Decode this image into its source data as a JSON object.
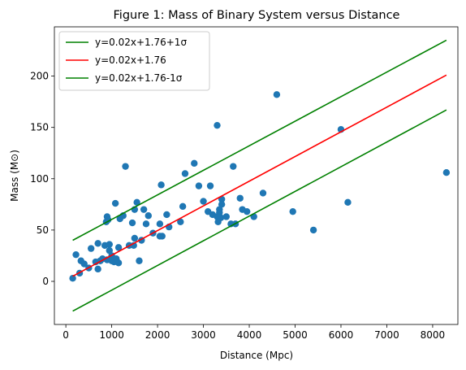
{
  "chart_data": {
    "type": "scatter",
    "title": "Figure 1: Mass of Binary System versus Distance",
    "xlabel": "Distance (Mpc)",
    "ylabel": "Mass (M⊙)",
    "xlim": [
      -250,
      8550
    ],
    "ylim": [
      -42,
      248
    ],
    "x_ticks": [
      0,
      1000,
      2000,
      3000,
      4000,
      5000,
      6000,
      7000,
      8000
    ],
    "y_ticks": [
      0,
      50,
      100,
      150,
      200
    ],
    "grid": false,
    "legend_position": "top-left",
    "points": {
      "color": "#1f77b4",
      "x": [
        150,
        220,
        300,
        330,
        400,
        500,
        550,
        650,
        700,
        700,
        750,
        800,
        850,
        880,
        900,
        900,
        920,
        950,
        950,
        1000,
        1000,
        1050,
        1080,
        1100,
        1120,
        1150,
        1150,
        1180,
        1250,
        1300,
        1380,
        1450,
        1480,
        1500,
        1500,
        1550,
        1600,
        1650,
        1700,
        1750,
        1800,
        1900,
        2050,
        2050,
        2080,
        2100,
        2200,
        2250,
        2500,
        2550,
        2600,
        2800,
        2900,
        3000,
        3100,
        3150,
        3200,
        3300,
        3300,
        3320,
        3350,
        3350,
        3380,
        3400,
        3400,
        3500,
        3600,
        3650,
        3700,
        3800,
        3850,
        3950,
        4100,
        4300,
        4600,
        4950,
        5400,
        6000,
        6150,
        8300
      ],
      "y": [
        3,
        26,
        8,
        20,
        17,
        13,
        32,
        19,
        12,
        37,
        20,
        22,
        35,
        58,
        21,
        63,
        60,
        30,
        36,
        25,
        20,
        19,
        76,
        22,
        19,
        33,
        18,
        61,
        64,
        112,
        35,
        57,
        35,
        42,
        70,
        77,
        20,
        40,
        70,
        56,
        64,
        47,
        44,
        56,
        94,
        44,
        65,
        53,
        58,
        73,
        105,
        115,
        93,
        78,
        68,
        93,
        65,
        63,
        152,
        58,
        70,
        67,
        62,
        80,
        75,
        63,
        56,
        112,
        56,
        81,
        70,
        68,
        63,
        86,
        182,
        68,
        50,
        148,
        77,
        106
      ]
    },
    "series": [
      {
        "name": "y=0.02x+1.76+1σ",
        "style": "line",
        "color": "#008000",
        "x": [
          150,
          8300
        ],
        "y": [
          40,
          235
        ]
      },
      {
        "name": "y=0.02x+1.76",
        "style": "line",
        "color": "#ff0000",
        "x": [
          150,
          8300
        ],
        "y": [
          5,
          201
        ]
      },
      {
        "name": "y=0.02x+1.76-1σ",
        "style": "line",
        "color": "#008000",
        "x": [
          150,
          8300
        ],
        "y": [
          -29,
          167
        ]
      }
    ]
  }
}
